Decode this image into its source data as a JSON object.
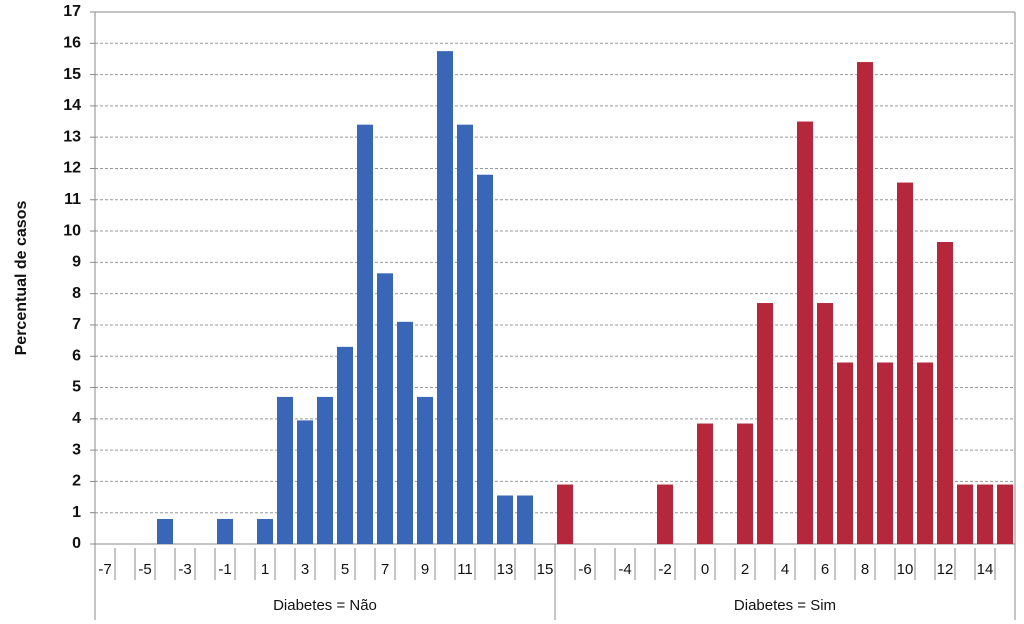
{
  "chart_data": {
    "type": "bar",
    "y_label": "Percentual  de casos",
    "ylim": [
      0,
      17
    ],
    "yticks": [
      0,
      1,
      2,
      3,
      4,
      5,
      6,
      7,
      8,
      9,
      10,
      11,
      12,
      13,
      14,
      15,
      16,
      17
    ],
    "grid": true,
    "panels": [
      {
        "label": "Diabetes = Não",
        "color": "#3a66b8",
        "categories": [
          "-7",
          null,
          "-5",
          null,
          "-3",
          null,
          "-1",
          null,
          "1",
          null,
          "3",
          null,
          "5",
          null,
          "7",
          null,
          "9",
          null,
          "11",
          null,
          "13",
          null,
          "15"
        ],
        "values": [
          0,
          0,
          0,
          0.8,
          0,
          0,
          0.8,
          0,
          0.8,
          4.7,
          3.95,
          4.7,
          6.3,
          13.4,
          8.65,
          7.1,
          4.7,
          15.75,
          13.4,
          11.8,
          1.55,
          1.55,
          0
        ]
      },
      {
        "label": "Diabetes = Sim",
        "color": "#b5273a",
        "categories": [
          null,
          "-6",
          null,
          "-4",
          null,
          "-2",
          null,
          "0",
          null,
          "2",
          null,
          "4",
          null,
          "6",
          null,
          "8",
          null,
          "10",
          null,
          "12",
          null,
          "14",
          null
        ],
        "values": [
          1.9,
          0,
          0,
          0,
          0,
          1.9,
          0,
          3.85,
          0,
          3.85,
          7.7,
          0,
          13.5,
          7.7,
          5.8,
          15.4,
          5.8,
          11.55,
          5.8,
          9.65,
          1.9,
          1.9,
          1.9
        ]
      }
    ]
  }
}
